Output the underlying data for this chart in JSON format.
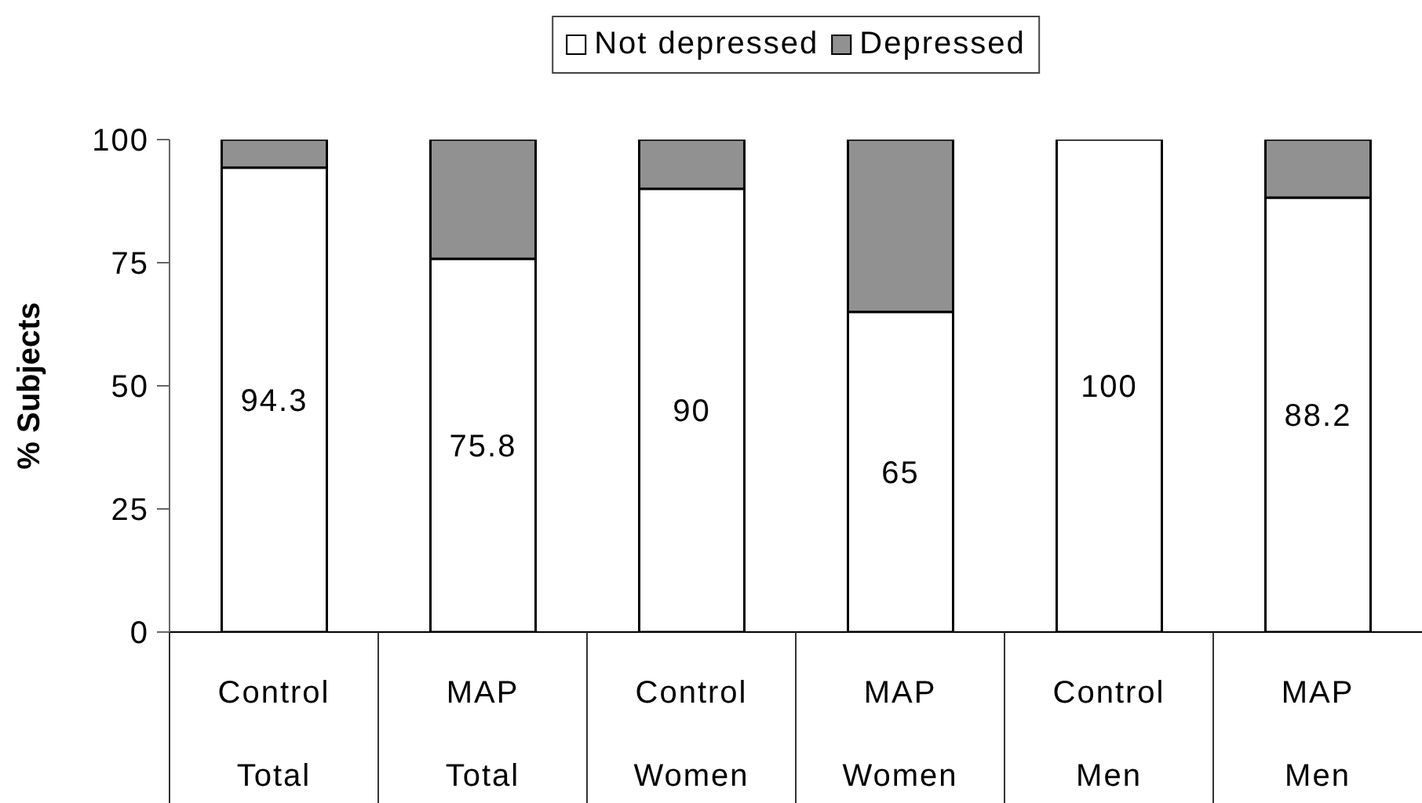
{
  "chart_data": {
    "type": "bar",
    "stacked": true,
    "categories": [
      "Control\nTotal",
      "MAP\nTotal",
      "Control\nWomen",
      "MAP\nWomen",
      "Control\nMen",
      "MAP\nMen"
    ],
    "series": [
      {
        "name": "Not depressed",
        "color": "#ffffff",
        "values": [
          94.3,
          75.8,
          90,
          65,
          100,
          88.2
        ],
        "value_labels": [
          "94.3",
          "75.8",
          "90",
          "65",
          "100",
          "88.2"
        ]
      },
      {
        "name": "Depressed",
        "color": "#919191",
        "values": [
          5.7,
          24.2,
          10,
          35,
          0,
          11.8
        ]
      }
    ],
    "ylabel": "% Subjects",
    "ylim": [
      0,
      100
    ],
    "yticks": [
      0,
      25,
      50,
      75,
      100
    ],
    "legend": "top"
  }
}
